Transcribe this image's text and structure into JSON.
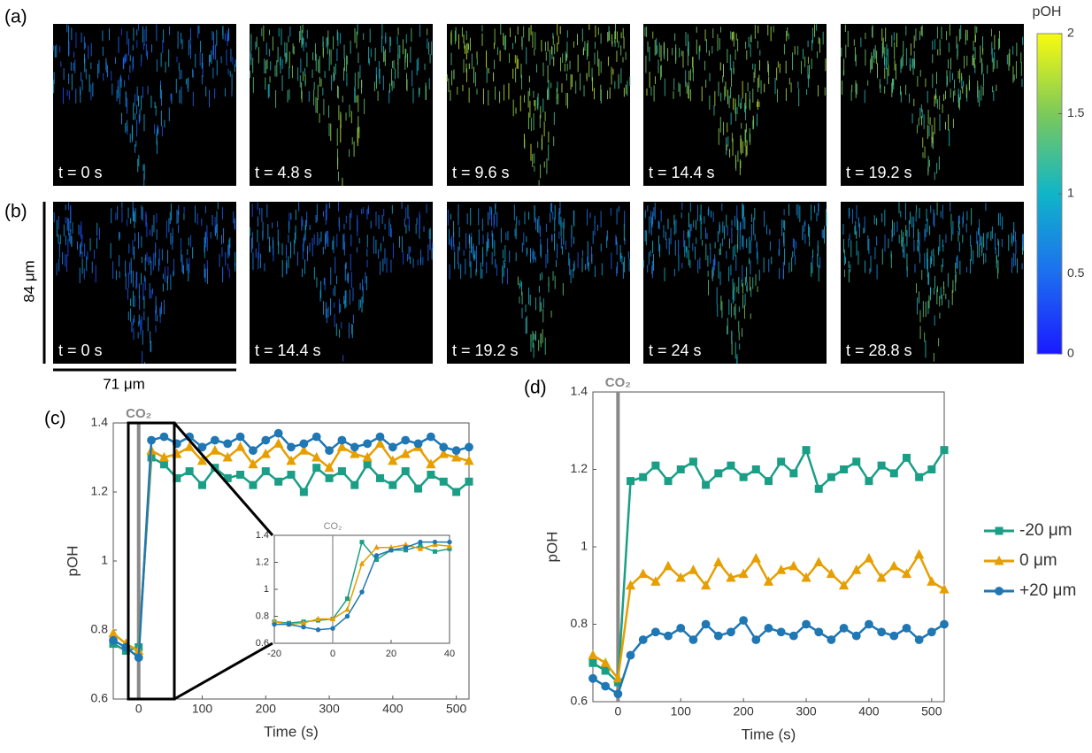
{
  "panels": {
    "a": {
      "label": "(a)",
      "times": [
        "t = 0 s",
        "t = 4.8 s",
        "t = 9.6 s",
        "t = 14.4 s",
        "t = 19.2 s"
      ]
    },
    "b": {
      "label": "(b)",
      "times": [
        "t = 0 s",
        "t = 14.4 s",
        "t = 19.2 s",
        "t = 24 s",
        "t = 28.8 s"
      ]
    }
  },
  "scale": {
    "vertical": "84 μm",
    "horizontal": "71 μm"
  },
  "colorbar": {
    "label": "pOH",
    "lim": [
      0,
      2
    ],
    "ticks": [
      0,
      0.5,
      1,
      1.5,
      2
    ]
  },
  "chart_data": [
    {
      "type": "line",
      "panel_label": "(c)",
      "x_label": "Time (s)",
      "y_label": "pOH",
      "event": {
        "label": "CO₂",
        "x": 0
      },
      "x": [
        -40,
        -20,
        0,
        20,
        40,
        60,
        80,
        100,
        120,
        140,
        160,
        180,
        200,
        220,
        240,
        260,
        280,
        300,
        320,
        340,
        360,
        380,
        400,
        420,
        440,
        460,
        480,
        500,
        520
      ],
      "series": [
        {
          "name": "-20 μm",
          "color": "#1a9e86",
          "marker": "square",
          "values": [
            0.76,
            0.74,
            0.75,
            1.3,
            1.28,
            1.24,
            1.26,
            1.22,
            1.27,
            1.24,
            1.25,
            1.22,
            1.26,
            1.23,
            1.25,
            1.2,
            1.27,
            1.24,
            1.26,
            1.22,
            1.28,
            1.24,
            1.22,
            1.26,
            1.21,
            1.25,
            1.23,
            1.2,
            1.23
          ]
        },
        {
          "name": "0 μm",
          "color": "#e69f00",
          "marker": "triangle",
          "values": [
            0.79,
            0.76,
            0.74,
            1.32,
            1.3,
            1.31,
            1.33,
            1.29,
            1.32,
            1.3,
            1.33,
            1.28,
            1.31,
            1.34,
            1.29,
            1.32,
            1.3,
            1.27,
            1.33,
            1.31,
            1.3,
            1.34,
            1.29,
            1.31,
            1.33,
            1.28,
            1.31,
            1.3,
            1.29
          ]
        },
        {
          "name": "+20 μm",
          "color": "#1f77b4",
          "marker": "circle",
          "values": [
            0.77,
            0.75,
            0.72,
            1.35,
            1.36,
            1.34,
            1.36,
            1.33,
            1.35,
            1.34,
            1.36,
            1.32,
            1.35,
            1.37,
            1.33,
            1.34,
            1.36,
            1.32,
            1.35,
            1.33,
            1.34,
            1.36,
            1.33,
            1.35,
            1.34,
            1.36,
            1.33,
            1.32,
            1.33
          ]
        }
      ],
      "xlim": [
        -40,
        520
      ],
      "ylim": [
        0.6,
        1.4
      ],
      "xticks": [
        0,
        100,
        200,
        300,
        400,
        500
      ],
      "yticks": [
        0.6,
        0.8,
        1,
        1.2,
        1.4
      ]
    },
    {
      "type": "line",
      "event": {
        "label": "CO₂",
        "x": 0
      },
      "x": [
        -20,
        -15,
        -10,
        -5,
        0,
        5,
        10,
        15,
        20,
        25,
        30,
        35,
        40
      ],
      "series": [
        {
          "color": "#1a9e86",
          "marker": "square",
          "values": [
            0.76,
            0.75,
            0.76,
            0.77,
            0.78,
            0.93,
            1.35,
            1.22,
            1.29,
            1.29,
            1.32,
            1.28,
            1.3
          ]
        },
        {
          "color": "#e69f00",
          "marker": "triangle",
          "values": [
            0.76,
            0.74,
            0.75,
            0.78,
            0.78,
            0.85,
            1.19,
            1.31,
            1.31,
            1.33,
            1.3,
            1.33,
            1.32
          ]
        },
        {
          "color": "#1f77b4",
          "marker": "circle",
          "values": [
            0.74,
            0.74,
            0.72,
            0.7,
            0.71,
            0.8,
            0.98,
            1.25,
            1.29,
            1.31,
            1.35,
            1.35,
            1.35
          ]
        }
      ],
      "xlim": [
        -20,
        40
      ],
      "ylim": [
        0.6,
        1.4
      ],
      "xticks": [
        -20,
        0,
        20,
        40
      ],
      "yticks": [
        0.6,
        0.8,
        1,
        1.2,
        1.4
      ]
    },
    {
      "type": "line",
      "panel_label": "(d)",
      "x_label": "Time (s)",
      "y_label": "pOH",
      "legend": "right",
      "event": {
        "label": "CO₂",
        "x": 0
      },
      "x": [
        -40,
        -20,
        0,
        20,
        40,
        60,
        80,
        100,
        120,
        140,
        160,
        180,
        200,
        220,
        240,
        260,
        280,
        300,
        320,
        340,
        360,
        380,
        400,
        420,
        440,
        460,
        480,
        500,
        520
      ],
      "series": [
        {
          "name": "-20 μm",
          "color": "#1a9e86",
          "marker": "square",
          "values": [
            0.7,
            0.68,
            0.65,
            1.17,
            1.18,
            1.21,
            1.17,
            1.2,
            1.22,
            1.16,
            1.19,
            1.21,
            1.18,
            1.2,
            1.17,
            1.22,
            1.19,
            1.25,
            1.15,
            1.18,
            1.2,
            1.22,
            1.17,
            1.21,
            1.19,
            1.23,
            1.18,
            1.2,
            1.25
          ]
        },
        {
          "name": "0 μm",
          "color": "#e69f00",
          "marker": "triangle",
          "values": [
            0.72,
            0.7,
            0.66,
            0.9,
            0.93,
            0.91,
            0.95,
            0.92,
            0.94,
            0.9,
            0.96,
            0.92,
            0.93,
            0.97,
            0.91,
            0.94,
            0.95,
            0.92,
            0.96,
            0.93,
            0.9,
            0.94,
            0.97,
            0.92,
            0.95,
            0.93,
            0.98,
            0.91,
            0.89
          ]
        },
        {
          "name": "+20 μm",
          "color": "#1f77b4",
          "marker": "circle",
          "values": [
            0.66,
            0.64,
            0.62,
            0.72,
            0.76,
            0.78,
            0.77,
            0.79,
            0.76,
            0.8,
            0.77,
            0.78,
            0.81,
            0.76,
            0.79,
            0.78,
            0.77,
            0.8,
            0.78,
            0.76,
            0.79,
            0.77,
            0.8,
            0.78,
            0.77,
            0.79,
            0.76,
            0.78,
            0.8
          ]
        }
      ],
      "xlim": [
        -40,
        520
      ],
      "ylim": [
        0.6,
        1.4
      ],
      "xticks": [
        0,
        100,
        200,
        300,
        400,
        500
      ],
      "yticks": [
        0.6,
        0.8,
        1,
        1.2,
        1.4
      ]
    }
  ]
}
